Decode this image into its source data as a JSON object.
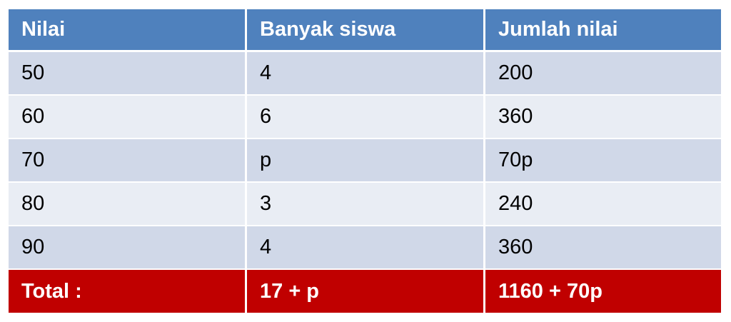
{
  "table": {
    "headers": [
      "Nilai",
      "Banyak siswa",
      "Jumlah nilai"
    ],
    "rows": [
      [
        "50",
        "4",
        "200"
      ],
      [
        "60",
        "6",
        "360"
      ],
      [
        "70",
        "p",
        "70p"
      ],
      [
        "80",
        "3",
        "240"
      ],
      [
        "90",
        "4",
        "360"
      ]
    ],
    "total": [
      "Total :",
      "17 + p",
      "1160 + 70p"
    ]
  },
  "colors": {
    "header": "#4F81BD",
    "row_dark": "#D0D8E8",
    "row_light": "#E9EDF4",
    "total": "#C00000"
  }
}
